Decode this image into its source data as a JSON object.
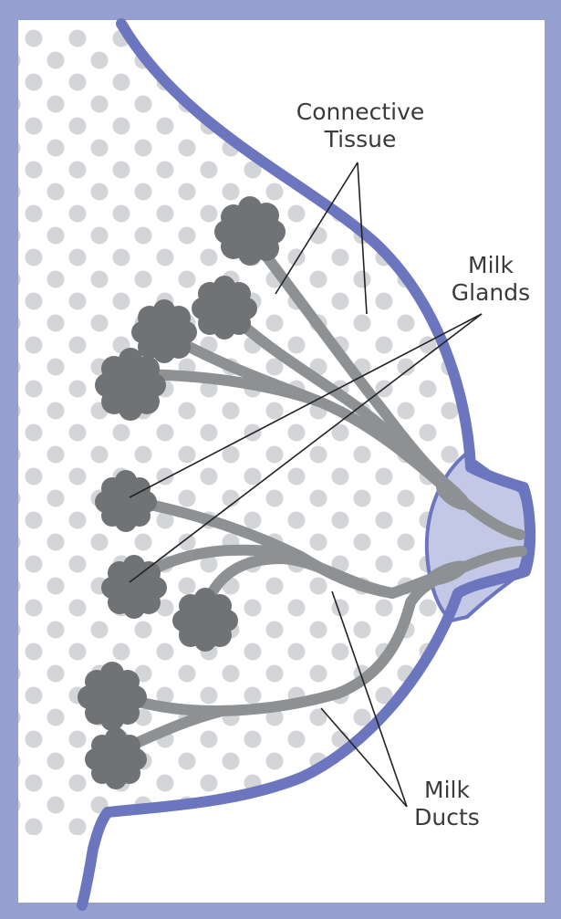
{
  "labels": {
    "connective_tissue": [
      "Connective",
      "Tissue"
    ],
    "milk_glands": [
      "Milk",
      "Glands"
    ],
    "milk_ducts": [
      "Milk",
      "Ducts"
    ]
  },
  "colors": {
    "frame": "#959fd0",
    "outline": "#6b76bf",
    "areola": "#c2c8e6",
    "dots": "#d3d5d9",
    "gland": "#707375",
    "duct": "#8e9193",
    "leader": "#222222",
    "text": "#3a3a3a"
  },
  "legend_items": [
    "connective-tissue",
    "milk-glands",
    "milk-ducts"
  ]
}
